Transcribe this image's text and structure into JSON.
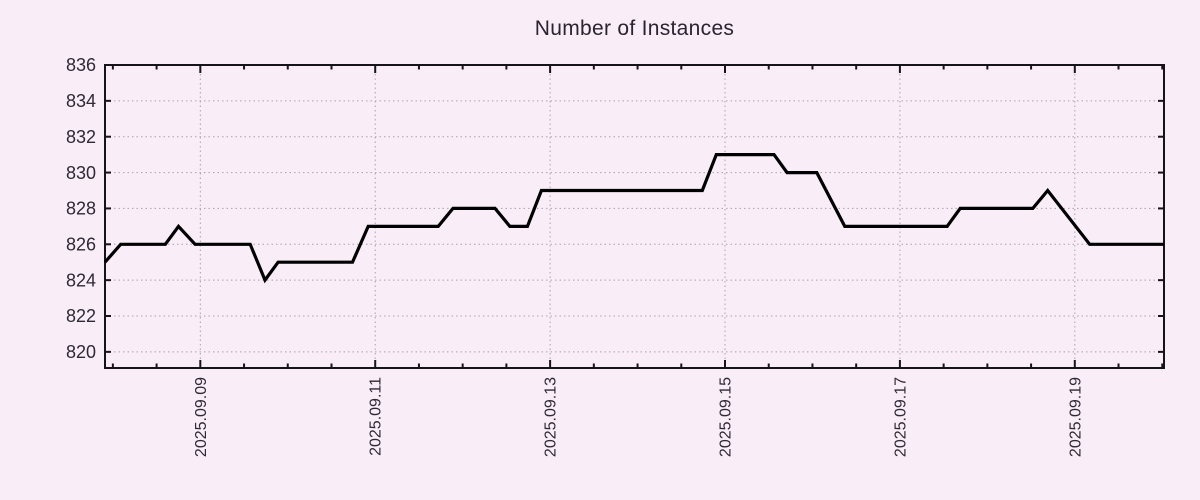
{
  "page": {
    "background_color": "#f9edf8"
  },
  "chart_data": {
    "type": "line",
    "title": "Number of Instances",
    "legend_position": "none",
    "grid": true,
    "colors": {
      "background": "#f9edf8",
      "grid": "#a9a2aa",
      "axis": "#16131a",
      "text": "#2e2935",
      "line": "#000000"
    },
    "x_axis": {
      "label": "",
      "unit": "date",
      "tick_labels": [
        "2025.09.09",
        "2025.09.11",
        "2025.09.13",
        "2025.09.15",
        "2025.09.17",
        "2025.09.19"
      ],
      "tick_days": [
        9,
        11,
        13,
        15,
        17,
        19
      ],
      "range_days": [
        7.91,
        20.02
      ],
      "minor_tick_step_days": 0.5,
      "tick_label_rotation_deg": -90
    },
    "y_axis": {
      "label": "",
      "ticks": [
        820,
        822,
        824,
        826,
        828,
        830,
        832,
        834,
        836
      ],
      "range": [
        819.1,
        836
      ]
    },
    "series": [
      {
        "name": "Number of Instances",
        "color": "#000000",
        "points": [
          [
            7.91,
            825
          ],
          [
            8.09,
            826
          ],
          [
            8.6,
            826
          ],
          [
            8.75,
            827
          ],
          [
            8.94,
            826
          ],
          [
            9.57,
            826
          ],
          [
            9.74,
            824
          ],
          [
            9.89,
            825
          ],
          [
            10.74,
            825
          ],
          [
            10.92,
            827
          ],
          [
            11.72,
            827
          ],
          [
            11.89,
            828
          ],
          [
            12.37,
            828
          ],
          [
            12.54,
            827
          ],
          [
            12.74,
            827
          ],
          [
            12.9,
            829
          ],
          [
            14.74,
            829
          ],
          [
            14.9,
            831
          ],
          [
            15.56,
            831
          ],
          [
            15.71,
            830
          ],
          [
            16.05,
            830
          ],
          [
            16.37,
            827
          ],
          [
            17.54,
            827
          ],
          [
            17.69,
            828
          ],
          [
            18.52,
            828
          ],
          [
            18.69,
            829
          ],
          [
            19.17,
            826
          ],
          [
            20.02,
            826
          ]
        ]
      }
    ]
  }
}
